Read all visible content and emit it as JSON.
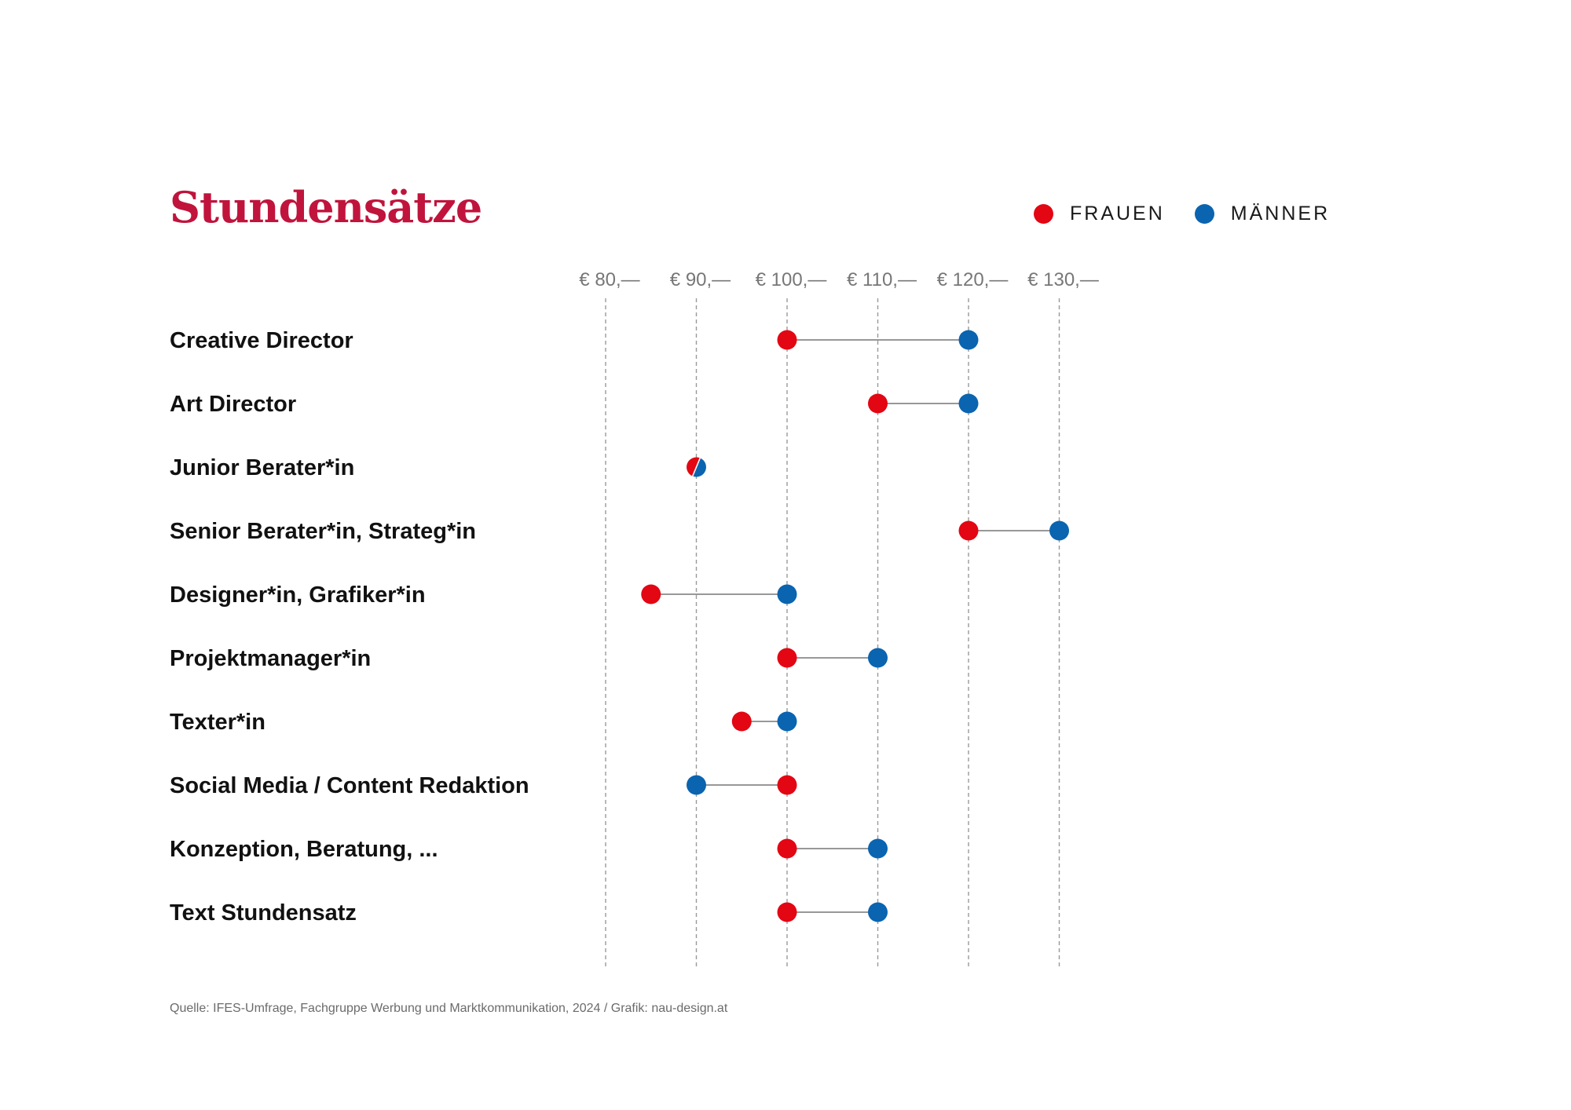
{
  "chart_data": {
    "type": "dumbbell",
    "title": "Stundensätze",
    "legend": [
      {
        "key": "frauen",
        "label": "FRAUEN",
        "color": "#e30613"
      },
      {
        "key": "maenner",
        "label": "MÄNNER",
        "color": "#0a64b0"
      }
    ],
    "x_ticks": [
      {
        "value": 80,
        "label": "€ 80,—"
      },
      {
        "value": 90,
        "label": "€ 90,—"
      },
      {
        "value": 100,
        "label": "€ 100,—"
      },
      {
        "value": 110,
        "label": "€ 110,—"
      },
      {
        "value": 120,
        "label": "€ 120,—"
      },
      {
        "value": 130,
        "label": "€ 130,—"
      }
    ],
    "xlim": [
      80,
      130
    ],
    "grid": "dashed vertical",
    "categories": [
      "Creative Director",
      "Art Director",
      "Junior Berater*in",
      "Senior Berater*in, Strateg*in",
      "Designer*in, Grafiker*in",
      "Projektmanager*in",
      "Texter*in",
      "Social Media / Content Redaktion",
      "Konzeption, Beratung, ...",
      "Text Stundensatz"
    ],
    "series": [
      {
        "name": "FRAUEN",
        "values": [
          100,
          110,
          90,
          120,
          85,
          100,
          95,
          100,
          100,
          100
        ]
      },
      {
        "name": "MÄNNER",
        "values": [
          120,
          120,
          90,
          130,
          100,
          110,
          100,
          90,
          110,
          110
        ]
      }
    ]
  },
  "source": "Quelle: IFES-Umfrage, Fachgruppe Werbung und Marktkommunikation, 2024 / Grafik: nau-design.at"
}
